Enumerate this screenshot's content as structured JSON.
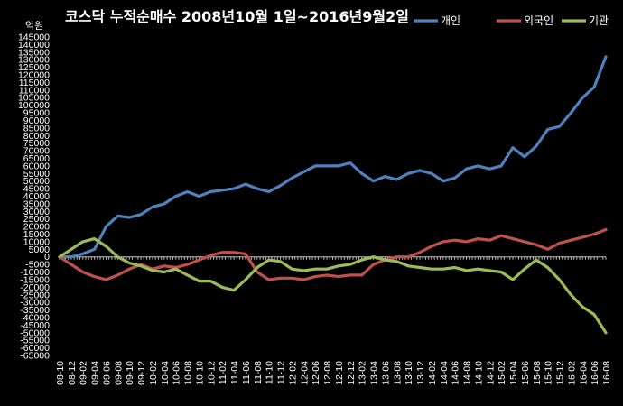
{
  "chart_data": {
    "type": "line",
    "title": "코스닥 누적순매수 2008년10월 1일~2016년9월2일",
    "ylabel": "억원",
    "xlabel": "",
    "ylim": [
      -65000,
      145000
    ],
    "ytick_step": 5000,
    "grid": false,
    "legend": "top-right",
    "x": [
      "08-10",
      "08-12",
      "09-02",
      "09-04",
      "09-06",
      "09-08",
      "09-10",
      "09-12",
      "10-02",
      "10-04",
      "10-06",
      "10-08",
      "10-10",
      "10-12",
      "11-02",
      "11-04",
      "11-06",
      "11-08",
      "11-10",
      "11-12",
      "12-02",
      "12-04",
      "12-06",
      "12-08",
      "12-10",
      "12-12",
      "13-02",
      "13-04",
      "13-06",
      "13-08",
      "13-10",
      "13-12",
      "14-02",
      "14-04",
      "14-06",
      "14-08",
      "14-10",
      "14-12",
      "15-02",
      "15-04",
      "15-06",
      "15-08",
      "15-10",
      "15-12",
      "16-02",
      "16-04",
      "16-06",
      "16-08"
    ],
    "series": [
      {
        "name": "개인",
        "color": "#4f81bd",
        "values": [
          0,
          0,
          2000,
          5000,
          20000,
          27000,
          26000,
          28000,
          33000,
          35000,
          40000,
          43000,
          40000,
          43000,
          44000,
          45000,
          48000,
          45000,
          43000,
          47000,
          52000,
          56000,
          60000,
          60000,
          60000,
          62000,
          55000,
          50000,
          53000,
          51000,
          55000,
          57000,
          55000,
          50000,
          52000,
          58000,
          60000,
          58000,
          60000,
          72000,
          66000,
          73000,
          84000,
          86000,
          95000,
          105000,
          112000,
          132000
        ]
      },
      {
        "name": "외국인",
        "color": "#c0504d",
        "values": [
          0,
          -5000,
          -10000,
          -13000,
          -15000,
          -12000,
          -8000,
          -5000,
          -8000,
          -6000,
          -7000,
          -5000,
          -2000,
          1000,
          3000,
          3000,
          2000,
          -10000,
          -15000,
          -14000,
          -14000,
          -15000,
          -13000,
          -12000,
          -13000,
          -12000,
          -12000,
          -5000,
          -2000,
          0,
          0,
          3000,
          7000,
          10000,
          11000,
          10000,
          12000,
          11000,
          14000,
          12000,
          10000,
          8000,
          5000,
          9000,
          11000,
          13000,
          15000,
          18000
        ]
      },
      {
        "name": "기관",
        "color": "#9bbb59",
        "values": [
          0,
          5000,
          10000,
          12000,
          7000,
          0,
          -4000,
          -6000,
          -9000,
          -10000,
          -8000,
          -12000,
          -16000,
          -16000,
          -20000,
          -22000,
          -15000,
          -7000,
          -2000,
          -3000,
          -8000,
          -9000,
          -8000,
          -8000,
          -6000,
          -5000,
          -2000,
          0,
          -2000,
          -3000,
          -6000,
          -7000,
          -8000,
          -8000,
          -7000,
          -9000,
          -8000,
          -9000,
          -10000,
          -15000,
          -8000,
          -2000,
          -7000,
          -15000,
          -25000,
          -33000,
          -38000,
          -50000
        ]
      }
    ]
  }
}
